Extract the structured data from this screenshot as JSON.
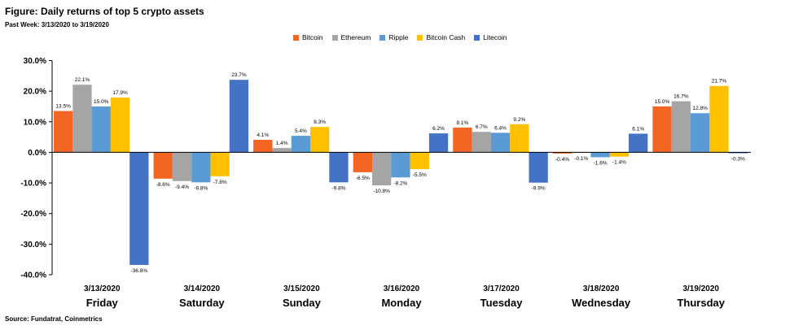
{
  "title": "Figure: Daily returns of top 5 crypto assets",
  "subtitle": "Past Week: 3/13/2020 to 3/19/2020",
  "source": "Source: Fundatrat, Coinmetrics",
  "colors": {
    "Bitcoin": "#f26522",
    "Ethereum": "#a5a5a5",
    "Ripple": "#5b9bd5",
    "Bitcoin Cash": "#ffc000",
    "Litecoin": "#4472c4"
  },
  "chart_data": {
    "type": "bar",
    "title": "",
    "xlabel": "",
    "ylabel": "",
    "ylim": [
      -40,
      30
    ],
    "yticks": [
      "30.0%",
      "20.0%",
      "10.0%",
      "0.0%",
      "-10.0%",
      "-20.0%",
      "-30.0%",
      "-40.0%"
    ],
    "yticks_values": [
      30,
      20,
      10,
      0,
      -10,
      -20,
      -30,
      -40
    ],
    "grid": false,
    "legend_position": "top",
    "categories": [
      "3/13/2020",
      "3/14/2020",
      "3/15/2020",
      "3/16/2020",
      "3/17/2020",
      "3/18/2020",
      "3/19/2020"
    ],
    "days": [
      "Friday",
      "Saturday",
      "Sunday",
      "Monday",
      "Tuesday",
      "Wednesday",
      "Thursday"
    ],
    "series": [
      {
        "name": "Bitcoin",
        "values": [
          13.5,
          -8.6,
          4.1,
          -6.5,
          8.1,
          -0.4,
          15.0
        ],
        "labels": [
          "13.5%",
          "-8.6%",
          "4.1%",
          "-6.5%",
          "8.1%",
          "-0.4%",
          "15.0%"
        ]
      },
      {
        "name": "Ethereum",
        "values": [
          22.1,
          -9.4,
          1.4,
          -10.8,
          6.7,
          -0.1,
          16.7
        ],
        "labels": [
          "22.1%",
          "-9.4%",
          "1.4%",
          "-10.8%",
          "6.7%",
          "-0.1%",
          "16.7%"
        ]
      },
      {
        "name": "Ripple",
        "values": [
          15.0,
          -9.8,
          5.4,
          -8.2,
          6.4,
          -1.6,
          12.8
        ],
        "labels": [
          "15.0%",
          "-9.8%",
          "5.4%",
          "-8.2%",
          "6.4%",
          "-1.6%",
          "12.8%"
        ]
      },
      {
        "name": "Bitcoin Cash",
        "values": [
          17.9,
          -7.8,
          8.3,
          -5.5,
          9.2,
          -1.4,
          21.7
        ],
        "labels": [
          "17.9%",
          "-7.8%",
          "8.3%",
          "-5.5%",
          "9.2%",
          "-1.4%",
          "21.7%"
        ]
      },
      {
        "name": "Litecoin",
        "values": [
          -36.8,
          23.7,
          -9.8,
          6.2,
          -9.9,
          6.1,
          -0.3
        ],
        "labels": [
          "-36.8%",
          "23.7%",
          "-9.8%",
          "6.2%",
          "-9.9%",
          "6.1%",
          "-0.3%"
        ]
      }
    ]
  }
}
